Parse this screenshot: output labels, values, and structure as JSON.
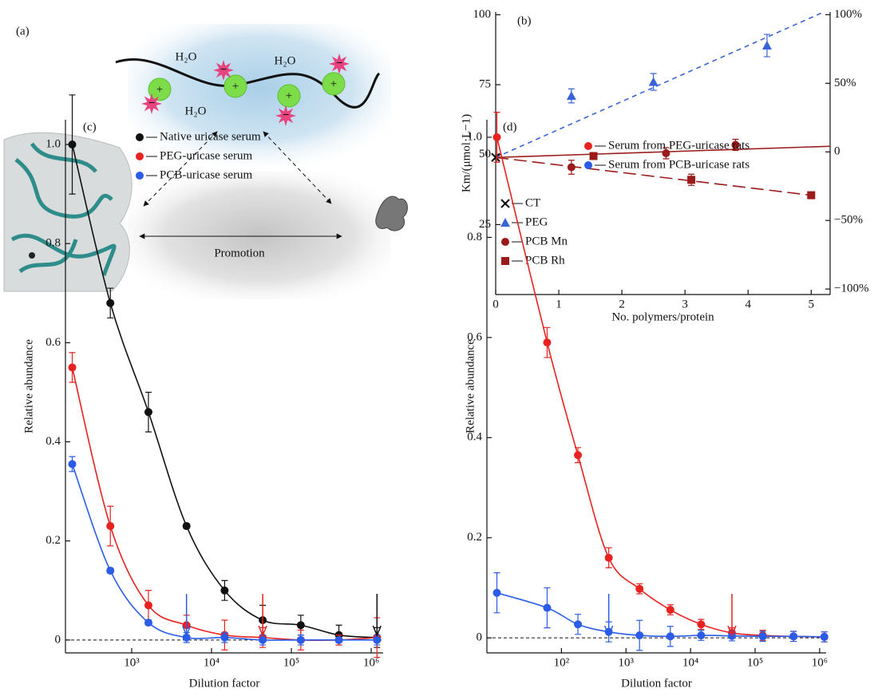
{
  "diagram": {
    "label": "(a)",
    "water": [
      "H₂O",
      "H₂O",
      "H₂O"
    ],
    "charges": [
      "+",
      "+",
      "+",
      "+",
      "−",
      "−",
      "−",
      "−"
    ],
    "arrow_label": "Promotion"
  },
  "chart_data": [
    {
      "type": "scatter",
      "title": "(b)",
      "xlabel": "No. polymers/protein",
      "ylabel": "Km/(μmol·L−1)",
      "xlim": [
        0,
        5.3
      ],
      "xticks": [
        0,
        1,
        2,
        3,
        4,
        5
      ],
      "ylim": [
        0,
        101
      ],
      "yticks": [
        25,
        50,
        75,
        100
      ],
      "y2lim": [
        -104,
        102
      ],
      "y2ticks": [
        {
          "value": 100,
          "label": "100%"
        },
        {
          "value": 50,
          "label": "50%"
        },
        0,
        {
          "value": -50,
          "label": "−50%"
        },
        {
          "value": -100,
          "label": "−100%"
        }
      ],
      "legend": "lower left",
      "series": [
        {
          "name": "CT",
          "color": "#111111",
          "marker": "x",
          "x": [
            0
          ],
          "values": [
            49
          ]
        },
        {
          "name": "PEG",
          "color": "#3b63d8",
          "marker": "triangle",
          "x": [
            1.2,
            2.5,
            4.3
          ],
          "values": [
            71,
            76,
            89
          ],
          "errors": [
            2.5,
            3,
            4
          ],
          "fit": {
            "x": [
              0,
              5.2
            ],
            "values": [
              49,
              101
            ],
            "dash": "6 5"
          }
        },
        {
          "name": "PCB Mn",
          "color": "#9b1b1b",
          "marker": "circle",
          "x": [
            1.2,
            2.7,
            3.8
          ],
          "values": [
            45.5,
            50.5,
            53.5
          ],
          "errors": [
            2.5,
            2,
            2
          ],
          "fit": {
            "x": [
              0,
              5.3
            ],
            "values": [
              49,
              53
            ],
            "dash": "none"
          }
        },
        {
          "name": "PCB Rh",
          "color": "#9b1b1b",
          "marker": "square",
          "x": [
            1.55,
            3.1,
            5
          ],
          "values": [
            49.5,
            41,
            35.5
          ],
          "errors": [
            0.8,
            2,
            0.8
          ],
          "fit": {
            "x": [
              0,
              5
            ],
            "values": [
              49,
              35.5
            ],
            "dash": "16 7"
          }
        }
      ]
    },
    {
      "type": "scatter",
      "title": "(c)",
      "xlabel": "Dilution factor",
      "ylabel": "Relative abundance",
      "xscale": "log",
      "curve": true,
      "xlim": [
        148,
        1410000
      ],
      "xticks": [
        {
          "value": 1000,
          "label": "10³"
        },
        {
          "value": 10000,
          "label": "10⁴"
        },
        {
          "value": 100000,
          "label": "10⁵"
        },
        {
          "value": 1000000,
          "label": "10⁶"
        }
      ],
      "ylim": [
        -0.026,
        1.05
      ],
      "yticks": [
        0,
        0.2,
        0.4,
        0.6,
        0.8,
        {
          "value": 1,
          "label": "1.0"
        }
      ],
      "hline": 0,
      "legend": "upper left",
      "arrows": [
        {
          "x": 4860,
          "color": "#2a5ce8"
        },
        {
          "x": 43740,
          "color": "#e8231f"
        },
        {
          "x": 1180980,
          "color": "#111111"
        }
      ],
      "series": [
        {
          "name": "Native uricase serum",
          "color": "#111111",
          "marker": "circle",
          "x": [
            180,
            540,
            1620,
            4860,
            14580,
            43740,
            131220,
            393660,
            1180980
          ],
          "values": [
            1.0,
            0.68,
            0.46,
            0.23,
            0.1,
            0.04,
            0.03,
            0.01,
            0.005
          ],
          "errors": [
            0.1,
            0.03,
            0.04,
            0.005,
            0.02,
            0.03,
            0.02,
            0.02,
            0.02
          ]
        },
        {
          "name": "PEG-uricase serum",
          "color": "#e8231f",
          "marker": "circle",
          "x": [
            180,
            540,
            1620,
            4860,
            14580,
            43740,
            131220,
            393660,
            1180980
          ],
          "values": [
            0.55,
            0.23,
            0.07,
            0.03,
            0.01,
            0.005,
            0.0,
            0.0,
            0.005
          ],
          "errors": [
            0.03,
            0.04,
            0.03,
            0.02,
            0.03,
            0.02,
            0.02,
            0.01,
            0.04
          ]
        },
        {
          "name": "PCB-uricase serum",
          "color": "#2a5ce8",
          "marker": "circle",
          "x": [
            180,
            540,
            1620,
            4860,
            14580,
            43740,
            131220,
            393660,
            1180980
          ],
          "values": [
            0.355,
            0.14,
            0.035,
            0.005,
            0.005,
            0.0,
            0.0,
            0.0,
            0.0
          ],
          "errors": [
            0.015,
            0.005,
            0.005,
            0.01,
            0.01,
            0.01,
            0.01,
            0.005,
            0.01
          ]
        }
      ]
    },
    {
      "type": "scatter",
      "title": "(d)",
      "xlabel": "Dilution factor",
      "ylabel": "Relative abundance",
      "xscale": "log",
      "curve": true,
      "xlim": [
        7,
        1260000
      ],
      "xticks": [
        {
          "value": 100,
          "label": "10²"
        },
        {
          "value": 1000,
          "label": "10³"
        },
        {
          "value": 10000,
          "label": "10⁴"
        },
        {
          "value": 100000,
          "label": "10⁵"
        },
        {
          "value": 1000000,
          "label": "10⁶"
        }
      ],
      "ylim": [
        -0.03,
        1.035
      ],
      "yticks": [
        0,
        0.2,
        0.4,
        0.6,
        0.8,
        {
          "value": 1,
          "label": "1.0"
        }
      ],
      "hline": 0,
      "legend": "upper left",
      "arrows": [
        {
          "x": 540,
          "color": "#2a5ce8"
        },
        {
          "x": 43740,
          "color": "#e8231f"
        }
      ],
      "series": [
        {
          "name": "Serum from PEG-uricase rats",
          "color": "#e8231f",
          "marker": "circle",
          "x": [
            10,
            60,
            180,
            540,
            1620,
            4860,
            14580,
            43740,
            131220,
            393660,
            1180980
          ],
          "values": [
            1.0,
            0.59,
            0.365,
            0.16,
            0.098,
            0.056,
            0.027,
            0.01,
            0.005,
            0.003,
            0.002
          ],
          "errors": [
            0.05,
            0.03,
            0.015,
            0.02,
            0.01,
            0.01,
            0.01,
            0.01,
            0.01,
            0.01,
            0.01
          ]
        },
        {
          "name": "Serum from PCB-uricase rats",
          "color": "#2a5ce8",
          "marker": "circle",
          "x": [
            10,
            60,
            180,
            540,
            1620,
            4860,
            14580,
            43740,
            131220,
            393660,
            1180980
          ],
          "values": [
            0.09,
            0.06,
            0.027,
            0.012,
            0.005,
            0.003,
            0.005,
            0.004,
            0.003,
            0.003,
            0.002
          ],
          "errors": [
            0.04,
            0.04,
            0.02,
            0.02,
            0.03,
            0.02,
            0.01,
            0.01,
            0.01,
            0.01,
            0.01
          ]
        }
      ]
    }
  ]
}
